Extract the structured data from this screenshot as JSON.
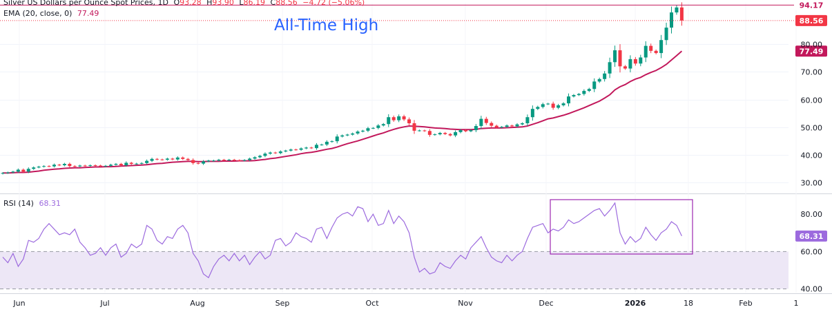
{
  "price_legend": {
    "symbol": "Silver US Dollars per Ounce Spot Prices, 1D",
    "open_label": "O",
    "open": "93.28",
    "high_label": "H",
    "high": "93.90",
    "low_label": "L",
    "low": "86.19",
    "close_label": "C",
    "close": "88.56",
    "change": "−4.72 (−5.06%)"
  },
  "ema_legend": {
    "label": "EMA (20, close, 0)",
    "value": "77.49"
  },
  "rsi_legend": {
    "label": "RSI (14)",
    "value": "68.31"
  },
  "annotation": "All-Time High",
  "colors": {
    "up": "#089981",
    "down": "#f23645",
    "ema": "#c2185b",
    "rsi": "#9c6ade",
    "rsi_band": "#ede7f6",
    "ath_line": "#c2185b",
    "highlight": "#9c27b0"
  },
  "chart_data": [
    {
      "type": "candlestick",
      "y_axis": {
        "ticks": [
          "30.00",
          "40.00",
          "50.00",
          "60.00",
          "70.00",
          "80.00"
        ],
        "ylim": [
          26,
          95
        ]
      },
      "x_axis": {
        "labels": [
          "Jun",
          "Jul",
          "Aug",
          "Sep",
          "Oct",
          "Nov",
          "Dec",
          "2026",
          "18",
          "Feb",
          "1"
        ]
      },
      "price_labels": {
        "ath": "94.17",
        "close": "88.56",
        "ema": "77.49"
      },
      "all_time_high": 94.17,
      "last_close": 88.56,
      "close": [
        33.4,
        33.6,
        33.9,
        34.6,
        33.9,
        34.9,
        35.4,
        35.7,
        35.9,
        35.8,
        36.4,
        36.2,
        36.7,
        35.9,
        35.8,
        36.1,
        36.0,
        36.2,
        36.1,
        35.9,
        36.0,
        36.4,
        36.7,
        36.2,
        37.1,
        36.7,
        36.8,
        37.0,
        37.8,
        38.5,
        38.3,
        38.2,
        38.6,
        38.3,
        39.0,
        38.5,
        38.1,
        37.0,
        36.8,
        37.6,
        37.9,
        37.9,
        38.2,
        38.1,
        38.2,
        38.0,
        37.9,
        38.1,
        38.6,
        39.1,
        39.6,
        40.4,
        40.8,
        40.6,
        41.2,
        41.5,
        41.9,
        41.8,
        42.3,
        42.6,
        42.4,
        43.6,
        43.7,
        44.7,
        44.9,
        46.6,
        47.0,
        47.3,
        47.7,
        48.4,
        48.7,
        49.6,
        49.7,
        50.6,
        51.1,
        53.6,
        52.5,
        53.9,
        52.8,
        51.4,
        48.7,
        48.8,
        48.6,
        47.2,
        47.4,
        47.9,
        47.5,
        47.0,
        48.2,
        48.9,
        48.5,
        48.9,
        50.4,
        53.0,
        51.5,
        50.5,
        49.9,
        50.1,
        50.6,
        50.3,
        51.0,
        51.4,
        53.6,
        56.6,
        57.3,
        58.3,
        58.5,
        57.0,
        57.9,
        58.6,
        61.1,
        61.6,
        62.0,
        63.1,
        63.8,
        66.5,
        67.4,
        69.4,
        73.5,
        77.8,
        72.0,
        71.2,
        74.6,
        73.0,
        75.2,
        79.4,
        77.6,
        76.8,
        81.5,
        86.0,
        91.5,
        93.3,
        88.56
      ],
      "ema": [
        33.4,
        33.4,
        33.5,
        33.6,
        33.6,
        33.7,
        33.9,
        34.1,
        34.4,
        34.6,
        34.8,
        34.9,
        35.1,
        35.2,
        35.3,
        35.3,
        35.4,
        35.5,
        35.6,
        35.6,
        35.7,
        35.7,
        35.8,
        35.9,
        36.0,
        36.1,
        36.2,
        36.3,
        36.4,
        36.6,
        36.8,
        36.9,
        37.1,
        37.3,
        37.4,
        37.5,
        37.6,
        37.6,
        37.5,
        37.5,
        37.6,
        37.6,
        37.6,
        37.7,
        37.7,
        37.7,
        37.8,
        37.8,
        37.8,
        37.9,
        38.1,
        38.3,
        38.6,
        38.8,
        39.1,
        39.4,
        39.7,
        40.0,
        40.4,
        40.7,
        40.9,
        41.2,
        41.6,
        42.0,
        42.3,
        42.8,
        43.4,
        44.0,
        44.5,
        45.0,
        45.6,
        46.2,
        46.8,
        47.4,
        47.9,
        48.6,
        49.2,
        49.7,
        50.1,
        50.4,
        50.3,
        50.2,
        50.1,
        49.9,
        49.7,
        49.6,
        49.5,
        49.3,
        49.2,
        49.1,
        49.1,
        49.1,
        49.2,
        49.5,
        49.6,
        49.7,
        49.7,
        49.7,
        49.8,
        49.9,
        50.0,
        50.1,
        50.4,
        51.0,
        51.6,
        52.3,
        53.0,
        53.3,
        53.8,
        54.3,
        54.9,
        55.6,
        56.3,
        57.0,
        57.8,
        58.6,
        59.4,
        60.5,
        61.7,
        63.5,
        64.6,
        65.4,
        66.5,
        67.4,
        68.0,
        69.0,
        69.8,
        70.5,
        71.5,
        72.7,
        74.3,
        75.9,
        77.49
      ]
    },
    {
      "type": "line",
      "title": "RSI (14)",
      "y_axis": {
        "ticks": [
          "40.00",
          "60.00",
          "80.00"
        ],
        "ylim": [
          38,
          90
        ]
      },
      "band": [
        40,
        60
      ],
      "last_value": "68.31",
      "values": [
        57,
        54,
        59,
        52,
        56,
        66,
        65,
        67,
        72,
        75,
        72,
        69,
        70,
        69,
        72,
        65,
        62,
        58,
        59,
        62,
        58,
        62,
        64,
        57,
        59,
        64,
        62,
        64,
        74,
        72,
        66,
        64,
        68,
        67,
        72,
        74,
        70,
        59,
        55,
        48,
        46,
        52,
        56,
        58,
        55,
        59,
        55,
        58,
        53,
        57,
        60,
        56,
        58,
        66,
        67,
        63,
        65,
        70,
        68,
        67,
        65,
        72,
        73,
        67,
        73,
        78,
        80,
        81,
        79,
        84,
        83,
        76,
        80,
        74,
        75,
        82,
        75,
        79,
        76,
        70,
        57,
        49,
        51,
        48,
        49,
        54,
        52,
        51,
        55,
        58,
        56,
        62,
        65,
        68,
        62,
        57,
        55,
        54,
        58,
        55,
        58,
        60,
        67,
        73,
        74,
        75,
        70,
        72,
        71,
        73,
        77,
        75,
        76,
        78,
        80,
        82,
        83,
        79,
        82,
        86,
        70,
        64,
        68,
        65,
        67,
        73,
        69,
        66,
        70,
        72,
        76,
        74,
        68.31
      ]
    }
  ],
  "x_labels": [
    "Jun",
    "Jul",
    "Aug",
    "Sep",
    "Oct",
    "Nov",
    "Dec",
    "2026",
    "18",
    "Feb",
    "1"
  ]
}
